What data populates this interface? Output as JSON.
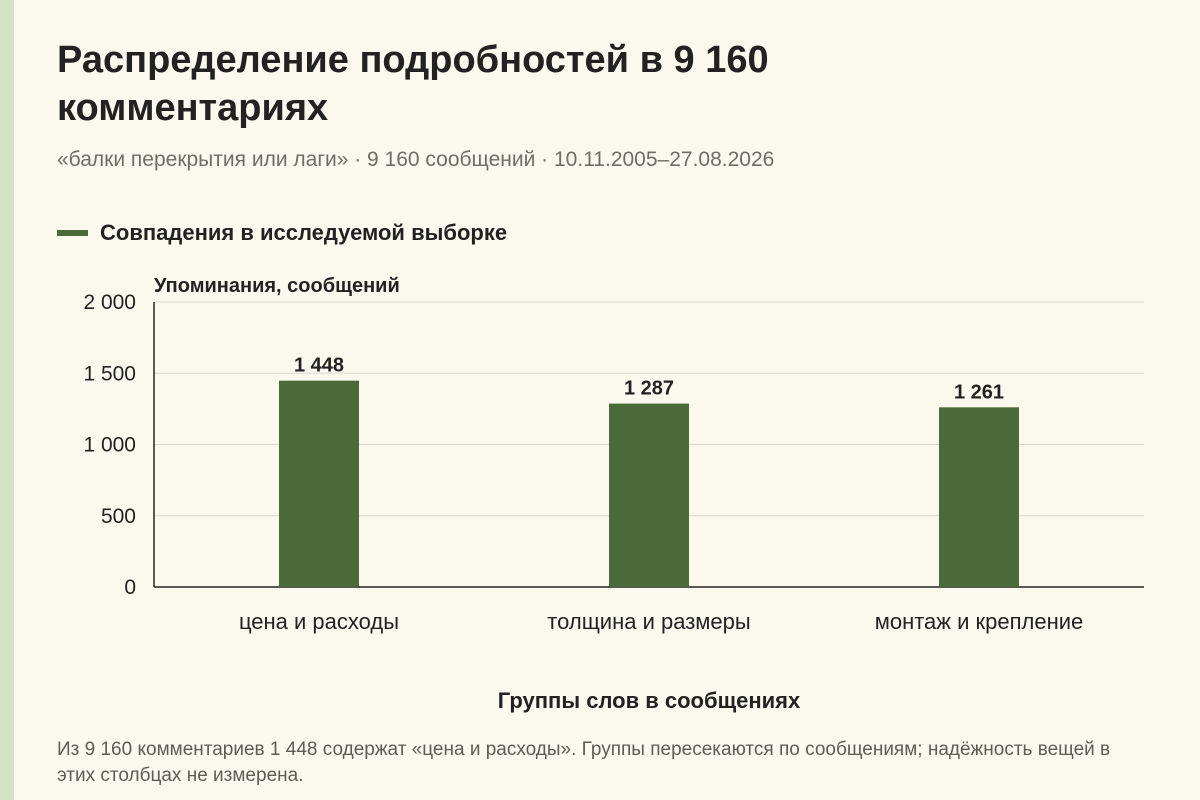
{
  "title": "Распределение подробностей в 9 160 комментариях",
  "subtitle": "«балки перекрытия или лаги» · 9 160 сообщений · 10.11.2005–27.08.2026",
  "legend": {
    "label": "Совпадения в исследуемой выборке"
  },
  "note": "Из 9 160 комментариев 1 448 содержат «цена и расходы». Группы пересекаются по сообщениям; надёжность вещей в этих столбцах не измерена.",
  "colors": {
    "bar": "#4a6a3a",
    "grid": "#d9d8cf",
    "axis": "#222222",
    "background": "#fbf9ee"
  },
  "chart_data": {
    "type": "bar",
    "categories": [
      "цена и расходы",
      "толщина и размеры",
      "монтаж и крепление"
    ],
    "series": [
      {
        "name": "Совпадения в исследуемой выборке",
        "values": [
          1448,
          1287,
          1261
        ],
        "labels": [
          "1 448",
          "1 287",
          "1 261"
        ]
      }
    ],
    "ylabel": "Упоминания, сообщений",
    "xlabel": "Группы слов в сообщениях",
    "ylim": [
      0,
      2000
    ],
    "yticks": [
      0,
      500,
      1000,
      1500,
      2000
    ],
    "ytick_labels": [
      "0",
      "500",
      "1 000",
      "1 500",
      "2 000"
    ],
    "grid": true,
    "legend_position": "top-left"
  }
}
